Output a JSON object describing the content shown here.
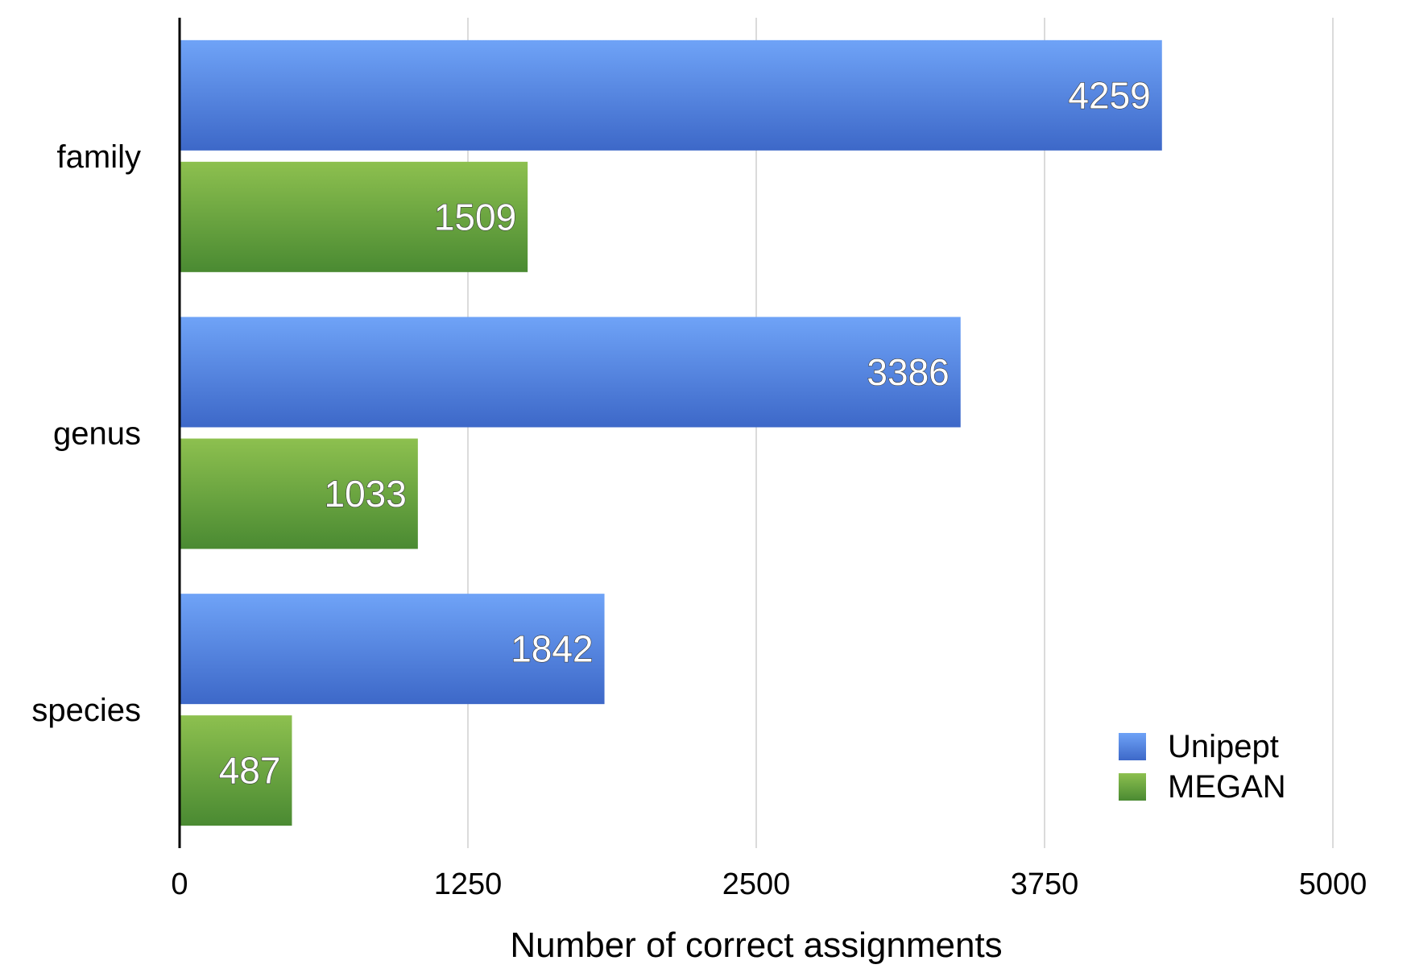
{
  "chart_data": {
    "type": "bar",
    "orientation": "horizontal",
    "categories": [
      "family",
      "genus",
      "species"
    ],
    "series": [
      {
        "name": "Unipept",
        "values": [
          4259,
          3386,
          1842
        ],
        "color": "#4a7fe0"
      },
      {
        "name": "MEGAN",
        "values": [
          1509,
          1033,
          487
        ],
        "color": "#5a9e3a"
      }
    ],
    "xlabel": "Number of correct assignments",
    "ylabel": "",
    "xlim": [
      0,
      5000
    ],
    "xticks": [
      "0",
      "1250",
      "2500",
      "3750",
      "5000"
    ],
    "grid": "vertical",
    "legend_position": "bottom-right",
    "data_labels": true
  }
}
